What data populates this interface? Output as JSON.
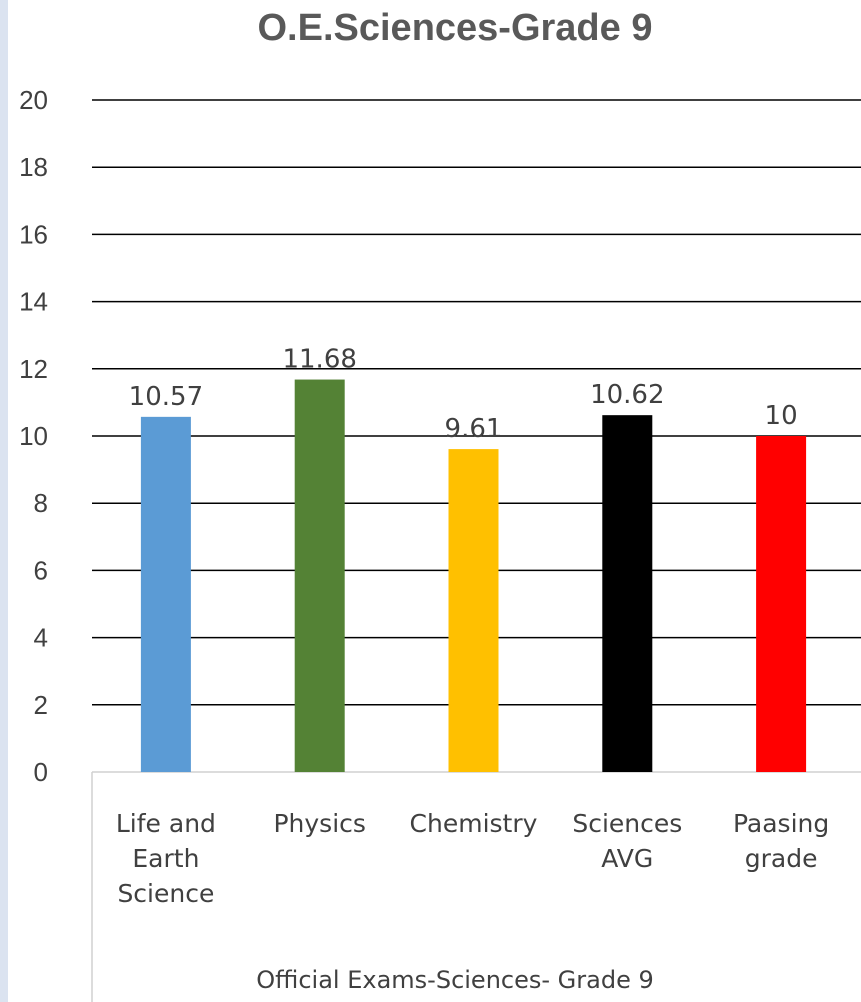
{
  "chart_data": {
    "type": "bar",
    "title": "O.E.Sciences-Grade 9",
    "categories": [
      [
        "Life and",
        "Earth",
        "Science"
      ],
      [
        "Physics"
      ],
      [
        "Chemistry"
      ],
      [
        "Sciences",
        "AVG"
      ],
      [
        "Paasing",
        "grade"
      ]
    ],
    "values": [
      10.57,
      11.68,
      9.61,
      10.62,
      10
    ],
    "value_labels": [
      "10.57",
      "11.68",
      "9.61",
      "10.62",
      "10"
    ],
    "bar_colors": [
      "#5b9bd5",
      "#548235",
      "#ffc000",
      "#000000",
      "#ff0000"
    ],
    "xlabel": "Official Exams-Sciences- Grade 9",
    "ylabel": "",
    "ylim": [
      0,
      20
    ],
    "yticks": [
      0,
      2,
      4,
      6,
      8,
      10,
      12,
      14,
      16,
      18,
      20
    ],
    "grid": true,
    "legend": "none"
  }
}
